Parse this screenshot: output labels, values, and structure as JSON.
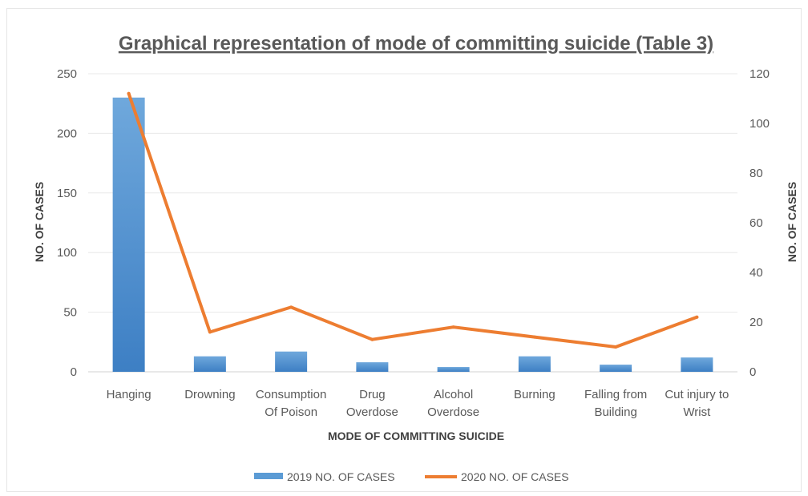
{
  "chart_data": {
    "type": "bar",
    "title": "Graphical representation of mode of committing suicide (Table 3)",
    "xlabel": "MODE OF COMMITTING SUICIDE",
    "ylabel": "NO. OF CASES",
    "ylabel_right": "NO. OF CASES",
    "categories": [
      [
        "Hanging"
      ],
      [
        "Drowning"
      ],
      [
        "Consumption",
        "Of Poison"
      ],
      [
        "Drug",
        "Overdose"
      ],
      [
        "Alcohol",
        "Overdose"
      ],
      [
        "Burning"
      ],
      [
        "Falling from",
        "Building"
      ],
      [
        "Cut injury to",
        "Wrist"
      ]
    ],
    "ylim": [
      0,
      250
    ],
    "yticks": [
      "0",
      "50",
      "100",
      "150",
      "200",
      "250"
    ],
    "ylim_right": [
      0,
      120
    ],
    "yticks_right": [
      "0",
      "20",
      "40",
      "60",
      "80",
      "100",
      "120"
    ],
    "grid": true,
    "legend_position": "bottom",
    "series": [
      {
        "name": "2019 NO. OF CASES",
        "type": "bar",
        "axis": "left",
        "color": "#5b9bd5",
        "values": [
          230,
          13,
          17,
          8,
          4,
          13,
          6,
          12
        ]
      },
      {
        "name": "2020 NO. OF CASES",
        "type": "line",
        "axis": "right",
        "color": "#ed7d31",
        "values": [
          112,
          16,
          26,
          13,
          18,
          14,
          10,
          22
        ]
      }
    ]
  }
}
